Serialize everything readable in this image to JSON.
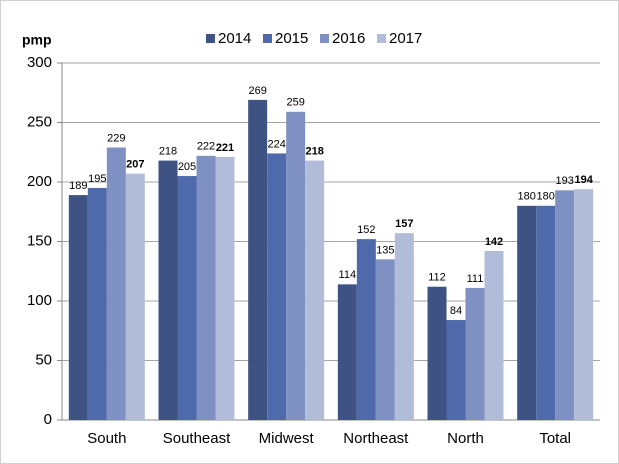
{
  "chart_data": {
    "type": "bar",
    "y_label": "pmp",
    "categories": [
      "South",
      "Southeast",
      "Midwest",
      "Northeast",
      "North",
      "Total"
    ],
    "series": [
      {
        "name": "2014",
        "color": "#3e5384",
        "values": [
          189,
          218,
          269,
          114,
          112,
          180
        ]
      },
      {
        "name": "2015",
        "color": "#4f6aab",
        "values": [
          195,
          205,
          224,
          152,
          84,
          180
        ]
      },
      {
        "name": "2016",
        "color": "#7f90c2",
        "values": [
          229,
          222,
          259,
          135,
          111,
          193
        ]
      },
      {
        "name": "2017",
        "color": "#b0bcd8",
        "values": [
          207,
          221,
          218,
          157,
          142,
          194
        ]
      }
    ],
    "ylim": [
      0,
      300
    ],
    "yticks": [
      0,
      50,
      100,
      150,
      200,
      250,
      300
    ],
    "grid": true
  }
}
